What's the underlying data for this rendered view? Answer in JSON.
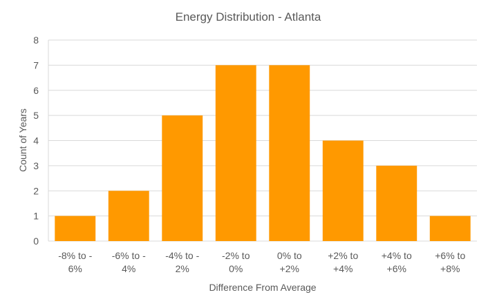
{
  "chart_data": {
    "type": "bar",
    "title": "Energy Distribution - Atlanta",
    "xlabel": "Difference From Average",
    "ylabel": "Count of Years",
    "categories": [
      [
        "-8% to -",
        "6%"
      ],
      [
        "-6% to -",
        "4%"
      ],
      [
        "-4% to -",
        "2%"
      ],
      [
        "-2% to",
        "0%"
      ],
      [
        "0% to",
        "+2%"
      ],
      [
        "+2% to",
        "+4%"
      ],
      [
        "+4% to",
        "+6%"
      ],
      [
        "+6% to",
        "+8%"
      ]
    ],
    "values": [
      1,
      2,
      5,
      7,
      7,
      4,
      3,
      1
    ],
    "ylim": [
      0,
      8
    ],
    "yticks": [
      "0",
      "1",
      "2",
      "3",
      "4",
      "5",
      "6",
      "7",
      "8"
    ],
    "grid": true,
    "legend": "none",
    "color": "#ff9900"
  }
}
